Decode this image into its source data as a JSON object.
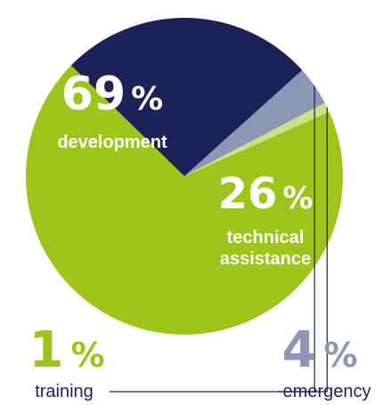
{
  "chart_data": {
    "type": "pie",
    "slices": [
      {
        "label": "development",
        "value": 69,
        "display": "69",
        "color": "#9dc41a"
      },
      {
        "label": "technical\nassistance",
        "value": 26,
        "display": "26",
        "color": "#1c2158"
      },
      {
        "label": "emergency",
        "value": 4,
        "display": "4",
        "color": "#8d97b5"
      },
      {
        "label": "training",
        "value": 1,
        "display": "1",
        "color": "#cbe08a"
      }
    ],
    "percent_sign": "%",
    "title": "",
    "legend": "none"
  }
}
